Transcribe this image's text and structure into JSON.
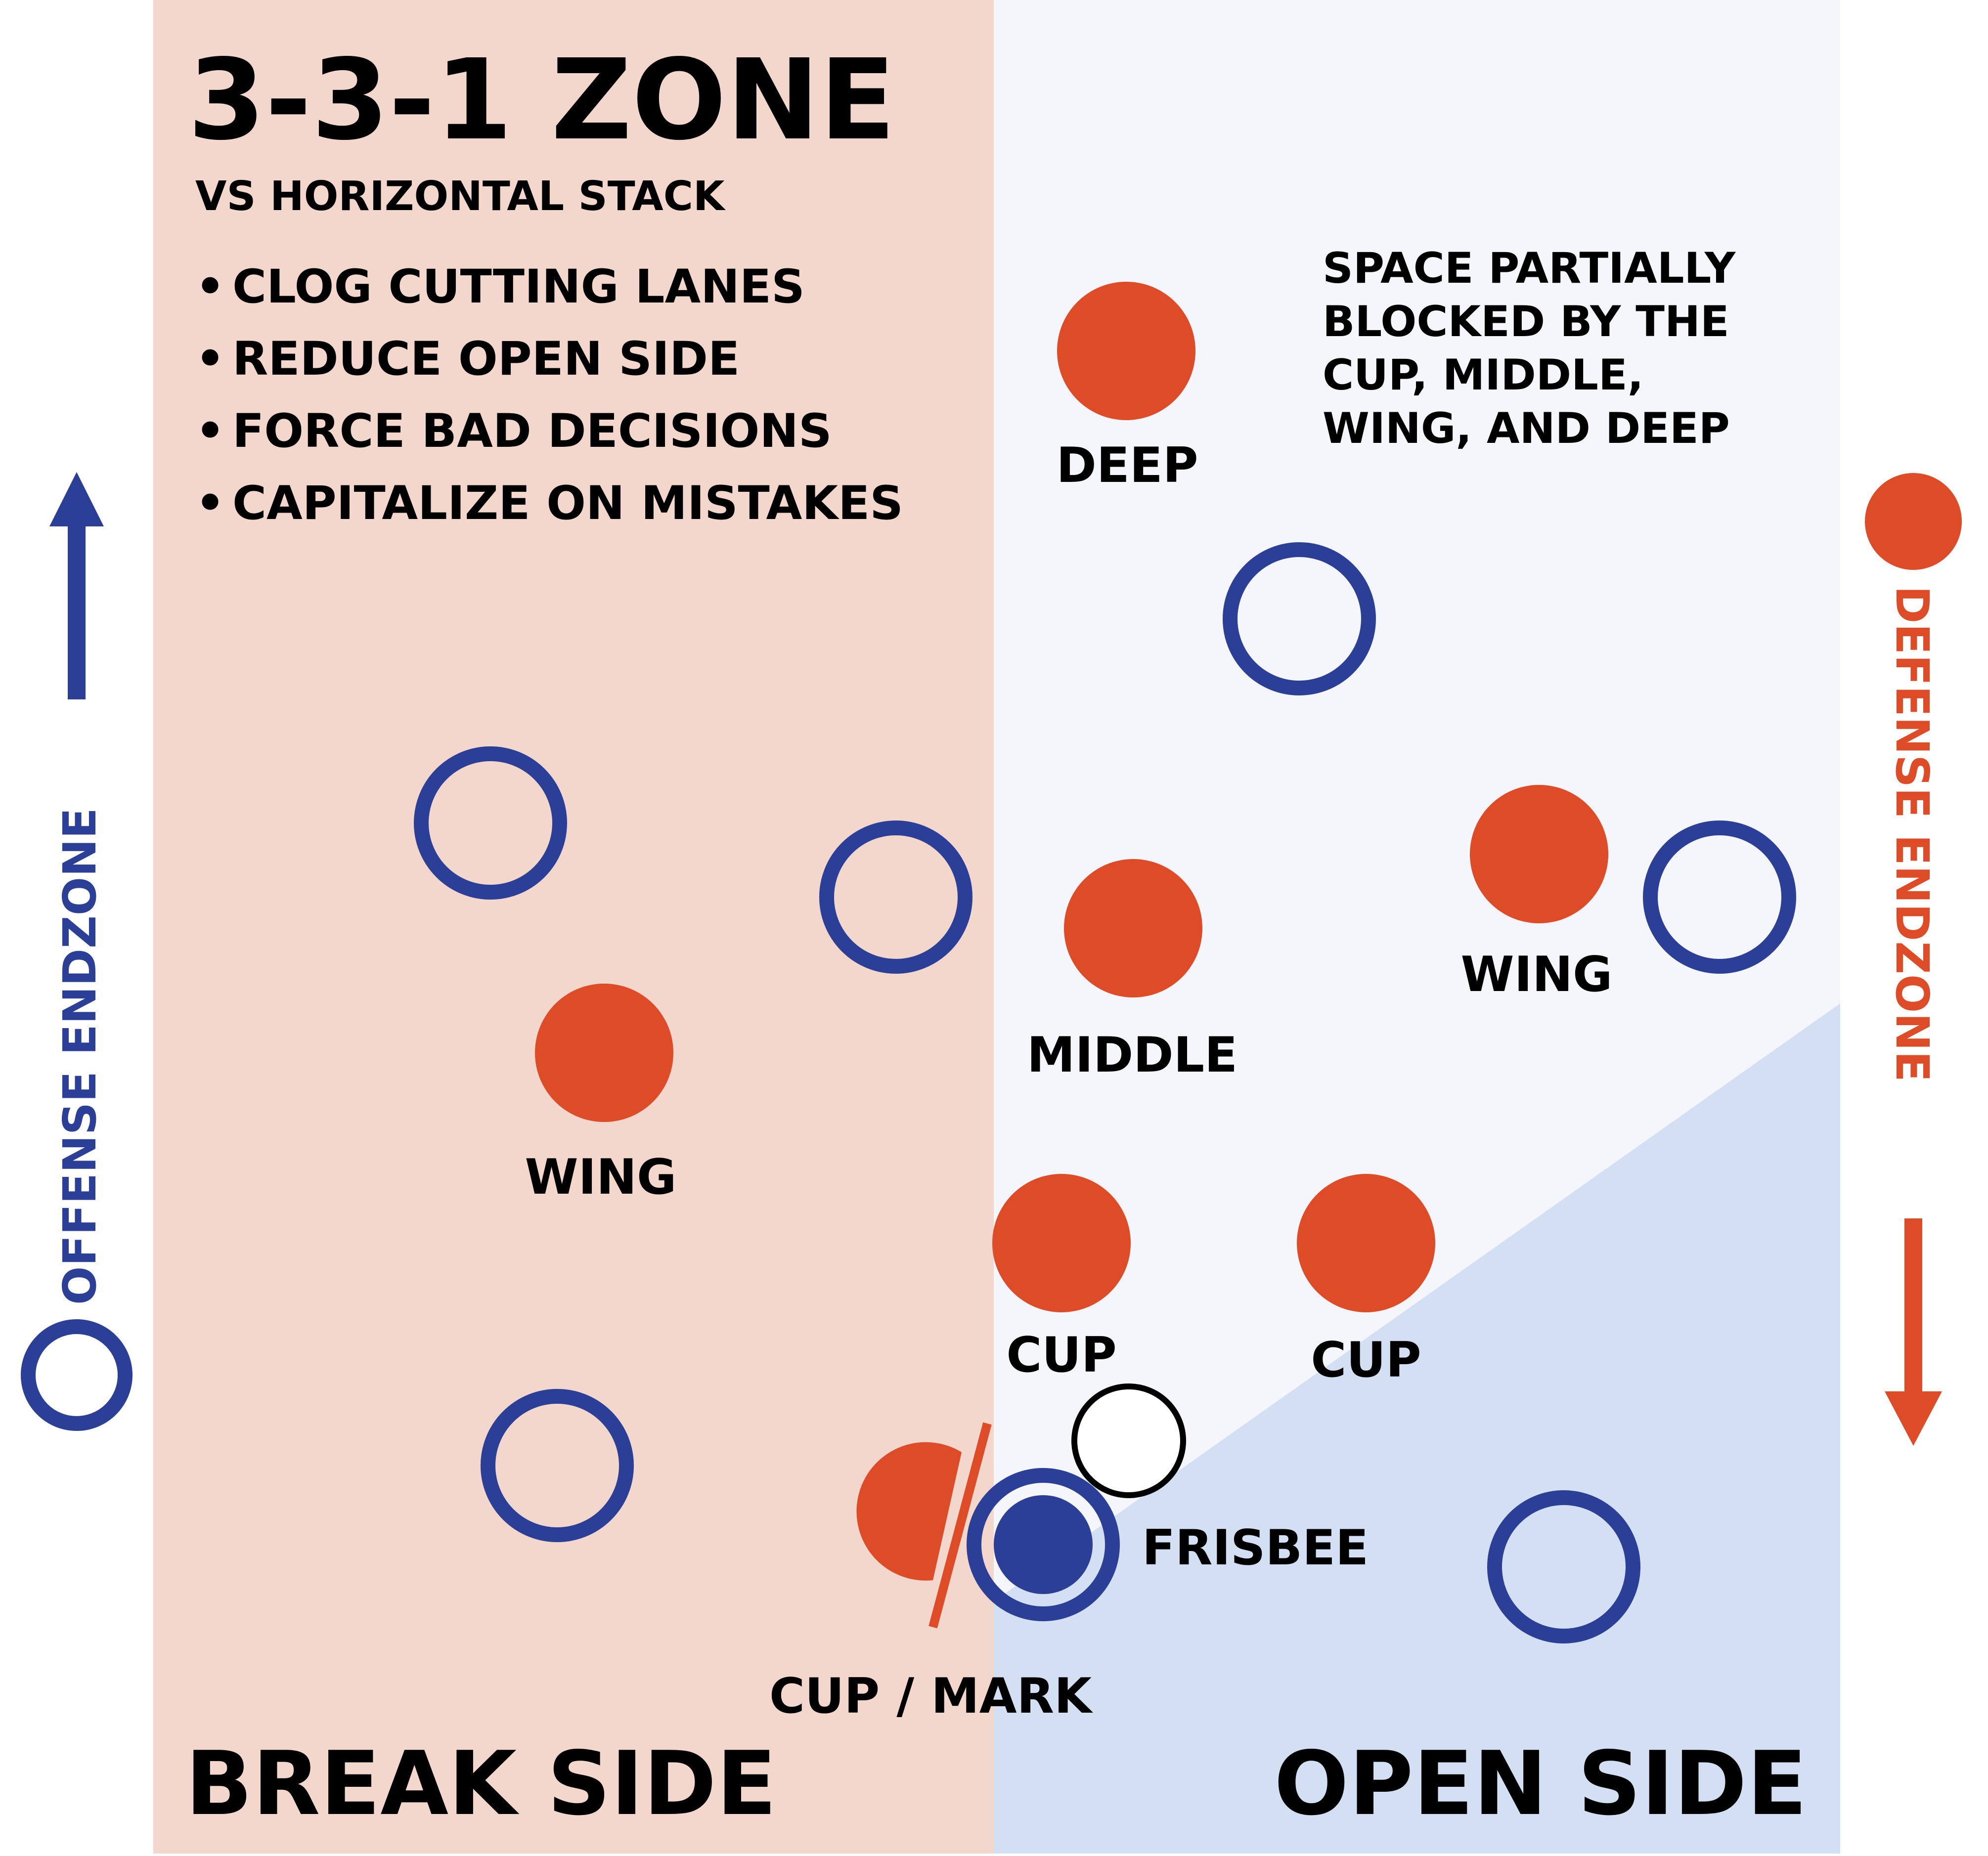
{
  "title": "3-3-1 ZONE",
  "subtitle": "VS HORIZONTAL STACK",
  "bullet_glyph": "•",
  "goals": [
    "CLOG CUTTING LANES",
    "REDUCE OPEN SIDE",
    "FORCE  BAD DECISIONS",
    "CAPITALIZE ON MISTAKES"
  ],
  "space_note": [
    "SPACE PARTIALLY",
    "BLOCKED BY THE",
    "CUP, MIDDLE,",
    "WING, AND DEEP"
  ],
  "offense_endzone_label": "OFFENSE ENDZONE",
  "defense_endzone_label": "DEFENSE ENDZONE",
  "break_side_label": "BREAK SIDE",
  "open_side_label": "OPEN SIDE",
  "positions": {
    "deep": "DEEP",
    "middle": "MIDDLE",
    "wing_left": "WING",
    "wing_right": "WING",
    "cup_left": "CUP",
    "cup_right": "CUP",
    "cup_mark": "CUP / MARK",
    "frisbee": "FRISBEE"
  },
  "colors": {
    "break_side_bg": "#f3d7cd",
    "open_side_bg": "#f5f6fb",
    "open_lane": "#d3e0f3",
    "defense": "#dd4b27",
    "offense": "#2b3f96",
    "text": "#000000"
  }
}
